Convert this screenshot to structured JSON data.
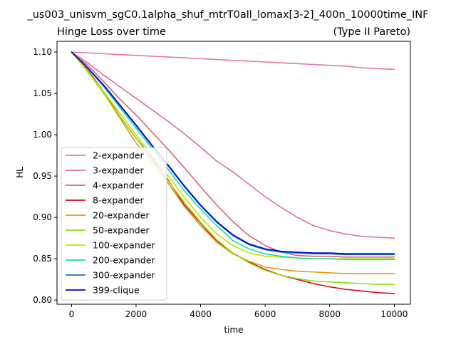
{
  "figure": {
    "suptitle": "_us003_unisvm_sgC0.1alpha_shuf_mtrT0all_lomax[3-2]_400n_10000time_INF",
    "title_left": "Hinge Loss over time",
    "title_right": "(Type II Pareto)"
  },
  "chart_data": {
    "type": "line",
    "xlabel": "time",
    "ylabel": "HL",
    "xlim": [
      -450,
      10500
    ],
    "ylim": [
      0.795,
      1.113
    ],
    "xticks": [
      0,
      2000,
      4000,
      6000,
      8000,
      10000
    ],
    "yticks": [
      0.8,
      0.85,
      0.9,
      0.95,
      1.0,
      1.05,
      1.1
    ],
    "ytick_labels": [
      "0.80",
      "0.85",
      "0.90",
      "0.95",
      "1.00",
      "1.05",
      "1.10"
    ],
    "grid": false,
    "legend_position": "lower-left",
    "x": [
      0,
      500,
      1000,
      1500,
      2000,
      2500,
      3000,
      3500,
      4000,
      4500,
      5000,
      5500,
      6000,
      6500,
      7000,
      7500,
      8000,
      8500,
      9000,
      9500,
      10000
    ],
    "series": [
      {
        "name": "2-expander",
        "color": "#e377a8",
        "values": [
          1.1,
          1.099,
          1.098,
          1.097,
          1.096,
          1.095,
          1.094,
          1.093,
          1.092,
          1.091,
          1.09,
          1.089,
          1.088,
          1.087,
          1.086,
          1.085,
          1.084,
          1.083,
          1.081,
          1.08,
          1.079
        ]
      },
      {
        "name": "3-expander",
        "color": "#e07090",
        "values": [
          1.1,
          1.087,
          1.072,
          1.058,
          1.044,
          1.03,
          1.016,
          1.001,
          0.985,
          0.968,
          0.955,
          0.94,
          0.925,
          0.912,
          0.9,
          0.89,
          0.884,
          0.88,
          0.877,
          0.876,
          0.875
        ]
      },
      {
        "name": "4-expander",
        "color": "#dd6070",
        "values": [
          1.1,
          1.084,
          1.064,
          1.043,
          1.024,
          1.003,
          0.982,
          0.96,
          0.937,
          0.915,
          0.895,
          0.878,
          0.866,
          0.858,
          0.854,
          0.853,
          0.853,
          0.852,
          0.852,
          0.852,
          0.852
        ]
      },
      {
        "name": "8-expander",
        "color": "#e00010",
        "values": [
          1.1,
          1.078,
          1.052,
          1.022,
          0.996,
          0.972,
          0.945,
          0.915,
          0.893,
          0.871,
          0.857,
          0.846,
          0.837,
          0.83,
          0.825,
          0.82,
          0.816,
          0.813,
          0.811,
          0.809,
          0.808
        ]
      },
      {
        "name": "20-expander",
        "color": "#e59a10",
        "values": [
          1.1,
          1.077,
          1.05,
          1.02,
          0.99,
          0.967,
          0.941,
          0.913,
          0.89,
          0.87,
          0.856,
          0.847,
          0.84,
          0.837,
          0.835,
          0.834,
          0.833,
          0.832,
          0.832,
          0.832,
          0.832
        ]
      },
      {
        "name": "50-expander",
        "color": "#88e010",
        "values": [
          1.1,
          1.076,
          1.05,
          1.022,
          0.996,
          0.97,
          0.944,
          0.918,
          0.894,
          0.873,
          0.857,
          0.845,
          0.836,
          0.83,
          0.826,
          0.823,
          0.822,
          0.821,
          0.82,
          0.819,
          0.819
        ]
      },
      {
        "name": "100-expander",
        "color": "#c8e000",
        "values": [
          1.1,
          1.076,
          1.052,
          1.026,
          1.0,
          0.975,
          0.95,
          0.924,
          0.9,
          0.88,
          0.866,
          0.857,
          0.853,
          0.852,
          0.851,
          0.85,
          0.85,
          0.85,
          0.85,
          0.85,
          0.85
        ]
      },
      {
        "name": "200-expander",
        "color": "#10e0a8",
        "values": [
          1.1,
          1.08,
          1.058,
          1.033,
          1.008,
          0.983,
          0.958,
          0.932,
          0.91,
          0.89,
          0.872,
          0.862,
          0.856,
          0.853,
          0.851,
          0.85,
          0.85,
          0.849,
          0.849,
          0.849,
          0.849
        ]
      },
      {
        "name": "300-expander",
        "color": "#1070c8",
        "values": [
          1.1,
          1.081,
          1.059,
          1.035,
          1.011,
          0.986,
          0.962,
          0.937,
          0.914,
          0.894,
          0.878,
          0.867,
          0.861,
          0.858,
          0.857,
          0.856,
          0.856,
          0.855,
          0.855,
          0.855,
          0.855
        ]
      },
      {
        "name": "399-clique",
        "color": "#0000e0",
        "values": [
          1.1,
          1.081,
          1.06,
          1.036,
          1.012,
          0.987,
          0.963,
          0.938,
          0.915,
          0.895,
          0.879,
          0.868,
          0.862,
          0.859,
          0.858,
          0.857,
          0.857,
          0.856,
          0.856,
          0.856,
          0.856
        ]
      }
    ]
  }
}
